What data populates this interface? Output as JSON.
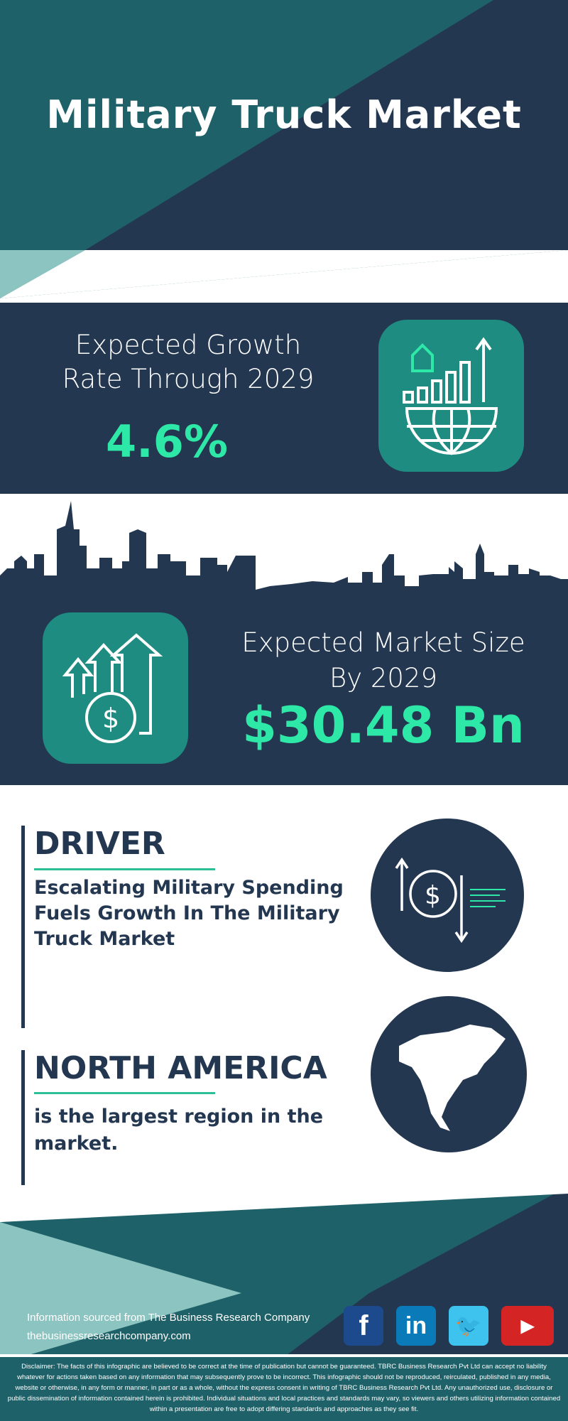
{
  "header": {
    "title": "Military Truck Market"
  },
  "growth": {
    "label_line1": "Expected Growth",
    "label_line2": "Rate Through 2029",
    "value": "4.6%",
    "icon": "growth-chart-globe-icon"
  },
  "market_size": {
    "label_line1": "Expected Market Size",
    "label_line2": "By 2029",
    "value": "$30.48 Bn",
    "icon": "dollar-arrows-up-icon"
  },
  "driver": {
    "heading": "DRIVER",
    "text_lines": [
      "Escalating Military Spending",
      "Fuels Growth In The Military",
      "Truck Market"
    ],
    "icon": "dollar-exchange-icon"
  },
  "region": {
    "heading": "NORTH AMERICA",
    "text_lines": [
      "is the largest region in the",
      "market."
    ],
    "icon": "north-america-map-icon"
  },
  "footer": {
    "source": "Information sourced from The Business Research Company",
    "website": "thebusinessresearchcompany.com",
    "social": [
      {
        "name": "facebook",
        "glyph": "f",
        "color": "#1d4a8c"
      },
      {
        "name": "linkedin",
        "glyph": "in",
        "color": "#0a7bb8"
      },
      {
        "name": "twitter",
        "glyph": "🐦",
        "color": "#3ec3ee"
      },
      {
        "name": "youtube",
        "glyph": "▶",
        "color": "#d42424"
      }
    ],
    "disclaimer": "Disclaimer: The facts of this infographic are believed to be correct at the time of publication but cannot be guaranteed. TBRC Business Research Pvt Ltd can accept no liability whatever for actions taken based on any information that may subsequently prove to be incorrect. This infographic should not be reproduced, reirculated, published in any media, website or otherwise, in any form or manner, in part or as a whole, without the express consent in writing of TBRC Business Research Pvt Ltd. Any unauthorized use, disclosure or public dissemination of information contained herein is prohibited. Individual situations and local practices and standards may vary, so viewers and others utilizing information contained within a presentation are free to adopt differing standards and approaches as they see fit."
  },
  "colors": {
    "navy": "#243750",
    "teal": "#1f6168",
    "light_teal": "#8bc4c0",
    "accent_green": "#2ee8a8",
    "icon_bg": "#1e8c80"
  }
}
